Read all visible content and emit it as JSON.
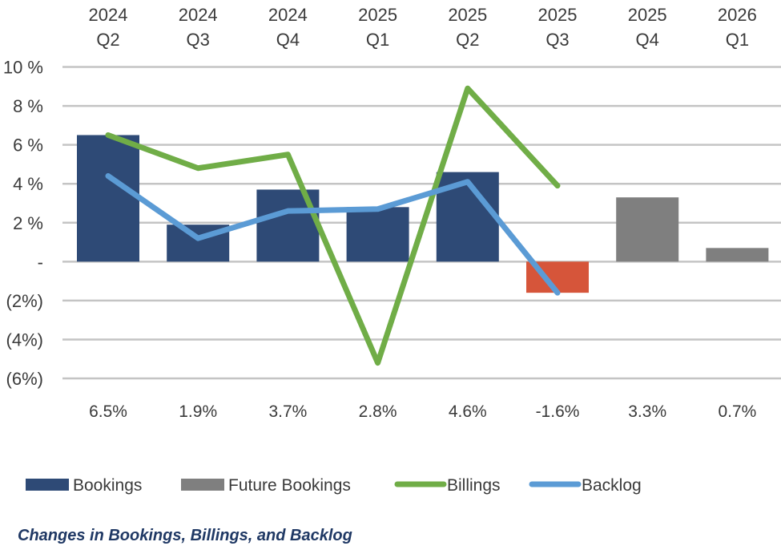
{
  "chart_data": {
    "type": "bar",
    "title": "Changes in Bookings, Billings, and Backlog",
    "categories": [
      [
        "2024",
        "Q2"
      ],
      [
        "2024",
        "Q3"
      ],
      [
        "2024",
        "Q4"
      ],
      [
        "2025",
        "Q1"
      ],
      [
        "2025",
        "Q2"
      ],
      [
        "2025",
        "Q3"
      ],
      [
        "2025",
        "Q4"
      ],
      [
        "2026",
        "Q1"
      ]
    ],
    "ylim": [
      -6,
      10
    ],
    "yticks": [
      10,
      8,
      6,
      4,
      2,
      0,
      -2,
      -4,
      -6
    ],
    "ytick_labels": [
      "10 %",
      "8 %",
      "6 %",
      "4 %",
      "2 %",
      "-",
      "(2%)",
      "(4%)",
      "(6%)"
    ],
    "grid": true,
    "legend_placement": "bottom",
    "bar_values": [
      6.5,
      1.9,
      3.7,
      2.8,
      4.6,
      -1.6,
      3.3,
      0.7
    ],
    "bar_labels": [
      "6.5%",
      "1.9%",
      "3.7%",
      "2.8%",
      "4.6%",
      "-1.6%",
      "3.3%",
      "0.7%"
    ],
    "bar_kinds": [
      "Bookings",
      "Bookings",
      "Bookings",
      "Bookings",
      "Bookings",
      "Negative",
      "Future Bookings",
      "Future Bookings"
    ],
    "series": [
      {
        "name": "Bookings",
        "kind": "bar",
        "color": "#2E4A76"
      },
      {
        "name": "Future Bookings",
        "kind": "bar",
        "color": "#7F7F7F"
      },
      {
        "name": "Billings",
        "kind": "line",
        "color": "#70AD47",
        "values": [
          6.5,
          4.8,
          5.5,
          -5.2,
          8.9,
          3.9,
          null,
          null
        ]
      },
      {
        "name": "Backlog",
        "kind": "line",
        "color": "#5B9BD5",
        "values": [
          4.4,
          1.2,
          2.6,
          2.7,
          4.1,
          -1.6,
          null,
          null
        ]
      }
    ],
    "negative_bar_color": "#D6553A"
  }
}
